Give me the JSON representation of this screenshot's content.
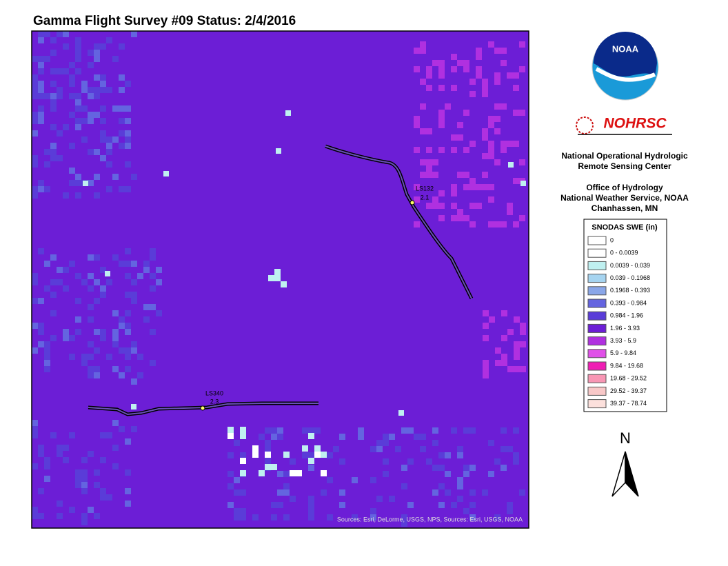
{
  "title": "Gamma Flight Survey #09 Status: 2/4/2016",
  "map": {
    "flight_lines": [
      {
        "name": "LS132",
        "value": "2.1"
      },
      {
        "name": "LS340",
        "value": "2.3"
      }
    ],
    "attribution": "Sources: Esri, DeLorme, USGS, NPS, Sources: Esri, USGS, NOAA"
  },
  "sidebar": {
    "noaa_logo": "NOAA",
    "nohrsc_logo": "NOHRSC",
    "org_lines": [
      "National Operational Hydrologic",
      "Remote Sensing Center"
    ],
    "office_lines": [
      "Office of Hydrology",
      "National Weather Service, NOAA",
      "Chanhassen, MN"
    ],
    "north": "N"
  },
  "legend": {
    "title": "SNODAS SWE (in)",
    "items": [
      {
        "label": "0",
        "color": "#ffffff"
      },
      {
        "label": "0 - 0.0039",
        "color": "#ffffff"
      },
      {
        "label": "0.0039 - 0.039",
        "color": "#bff0f0"
      },
      {
        "label": "0.039 - 0.1968",
        "color": "#a6d4f0"
      },
      {
        "label": "0.1968 - 0.393",
        "color": "#8aa6e8"
      },
      {
        "label": "0.393 - 0.984",
        "color": "#6464e0"
      },
      {
        "label": "0.984 - 1.96",
        "color": "#5a3cd8"
      },
      {
        "label": "1.96 - 3.93",
        "color": "#6c1ed6"
      },
      {
        "label": "3.93 - 5.9",
        "color": "#b030e0"
      },
      {
        "label": "5.9 - 9.84",
        "color": "#e050e8"
      },
      {
        "label": "9.84 - 19.68",
        "color": "#f01eb4"
      },
      {
        "label": "19.68 - 29.52",
        "color": "#f896b4"
      },
      {
        "label": "29.52 - 39.37",
        "color": "#f8c8c8"
      },
      {
        "label": "39.37 - 78.74",
        "color": "#fce0dc"
      }
    ]
  }
}
